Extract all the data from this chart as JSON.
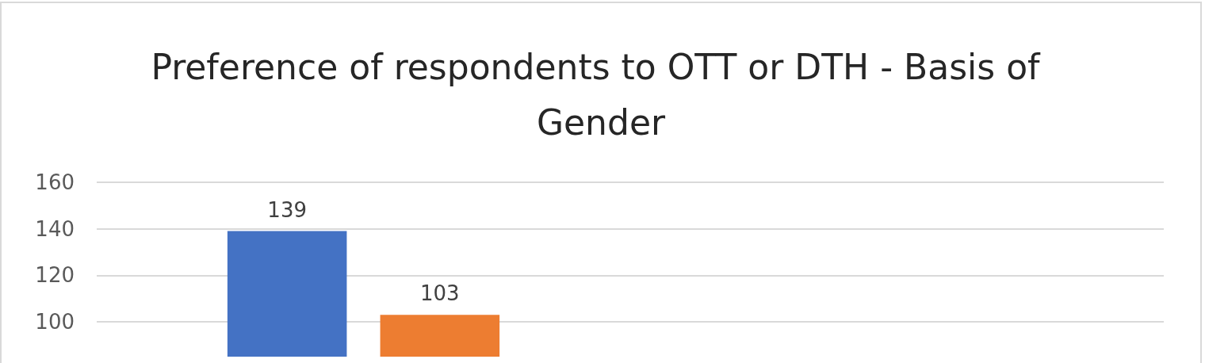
{
  "chart_data": {
    "type": "bar",
    "title": "Preference of respondents to OTT or DTH - Basis of Gender",
    "categories": [
      null,
      null
    ],
    "series": [
      {
        "color": "#4472c4",
        "values": [
          139,
          null
        ]
      },
      {
        "color": "#ed7d31",
        "values": [
          103,
          null
        ]
      }
    ],
    "ylim": [
      85,
      160
    ],
    "yticks": [
      100,
      120,
      140,
      160
    ],
    "grid": "y",
    "data_labels": true
  }
}
